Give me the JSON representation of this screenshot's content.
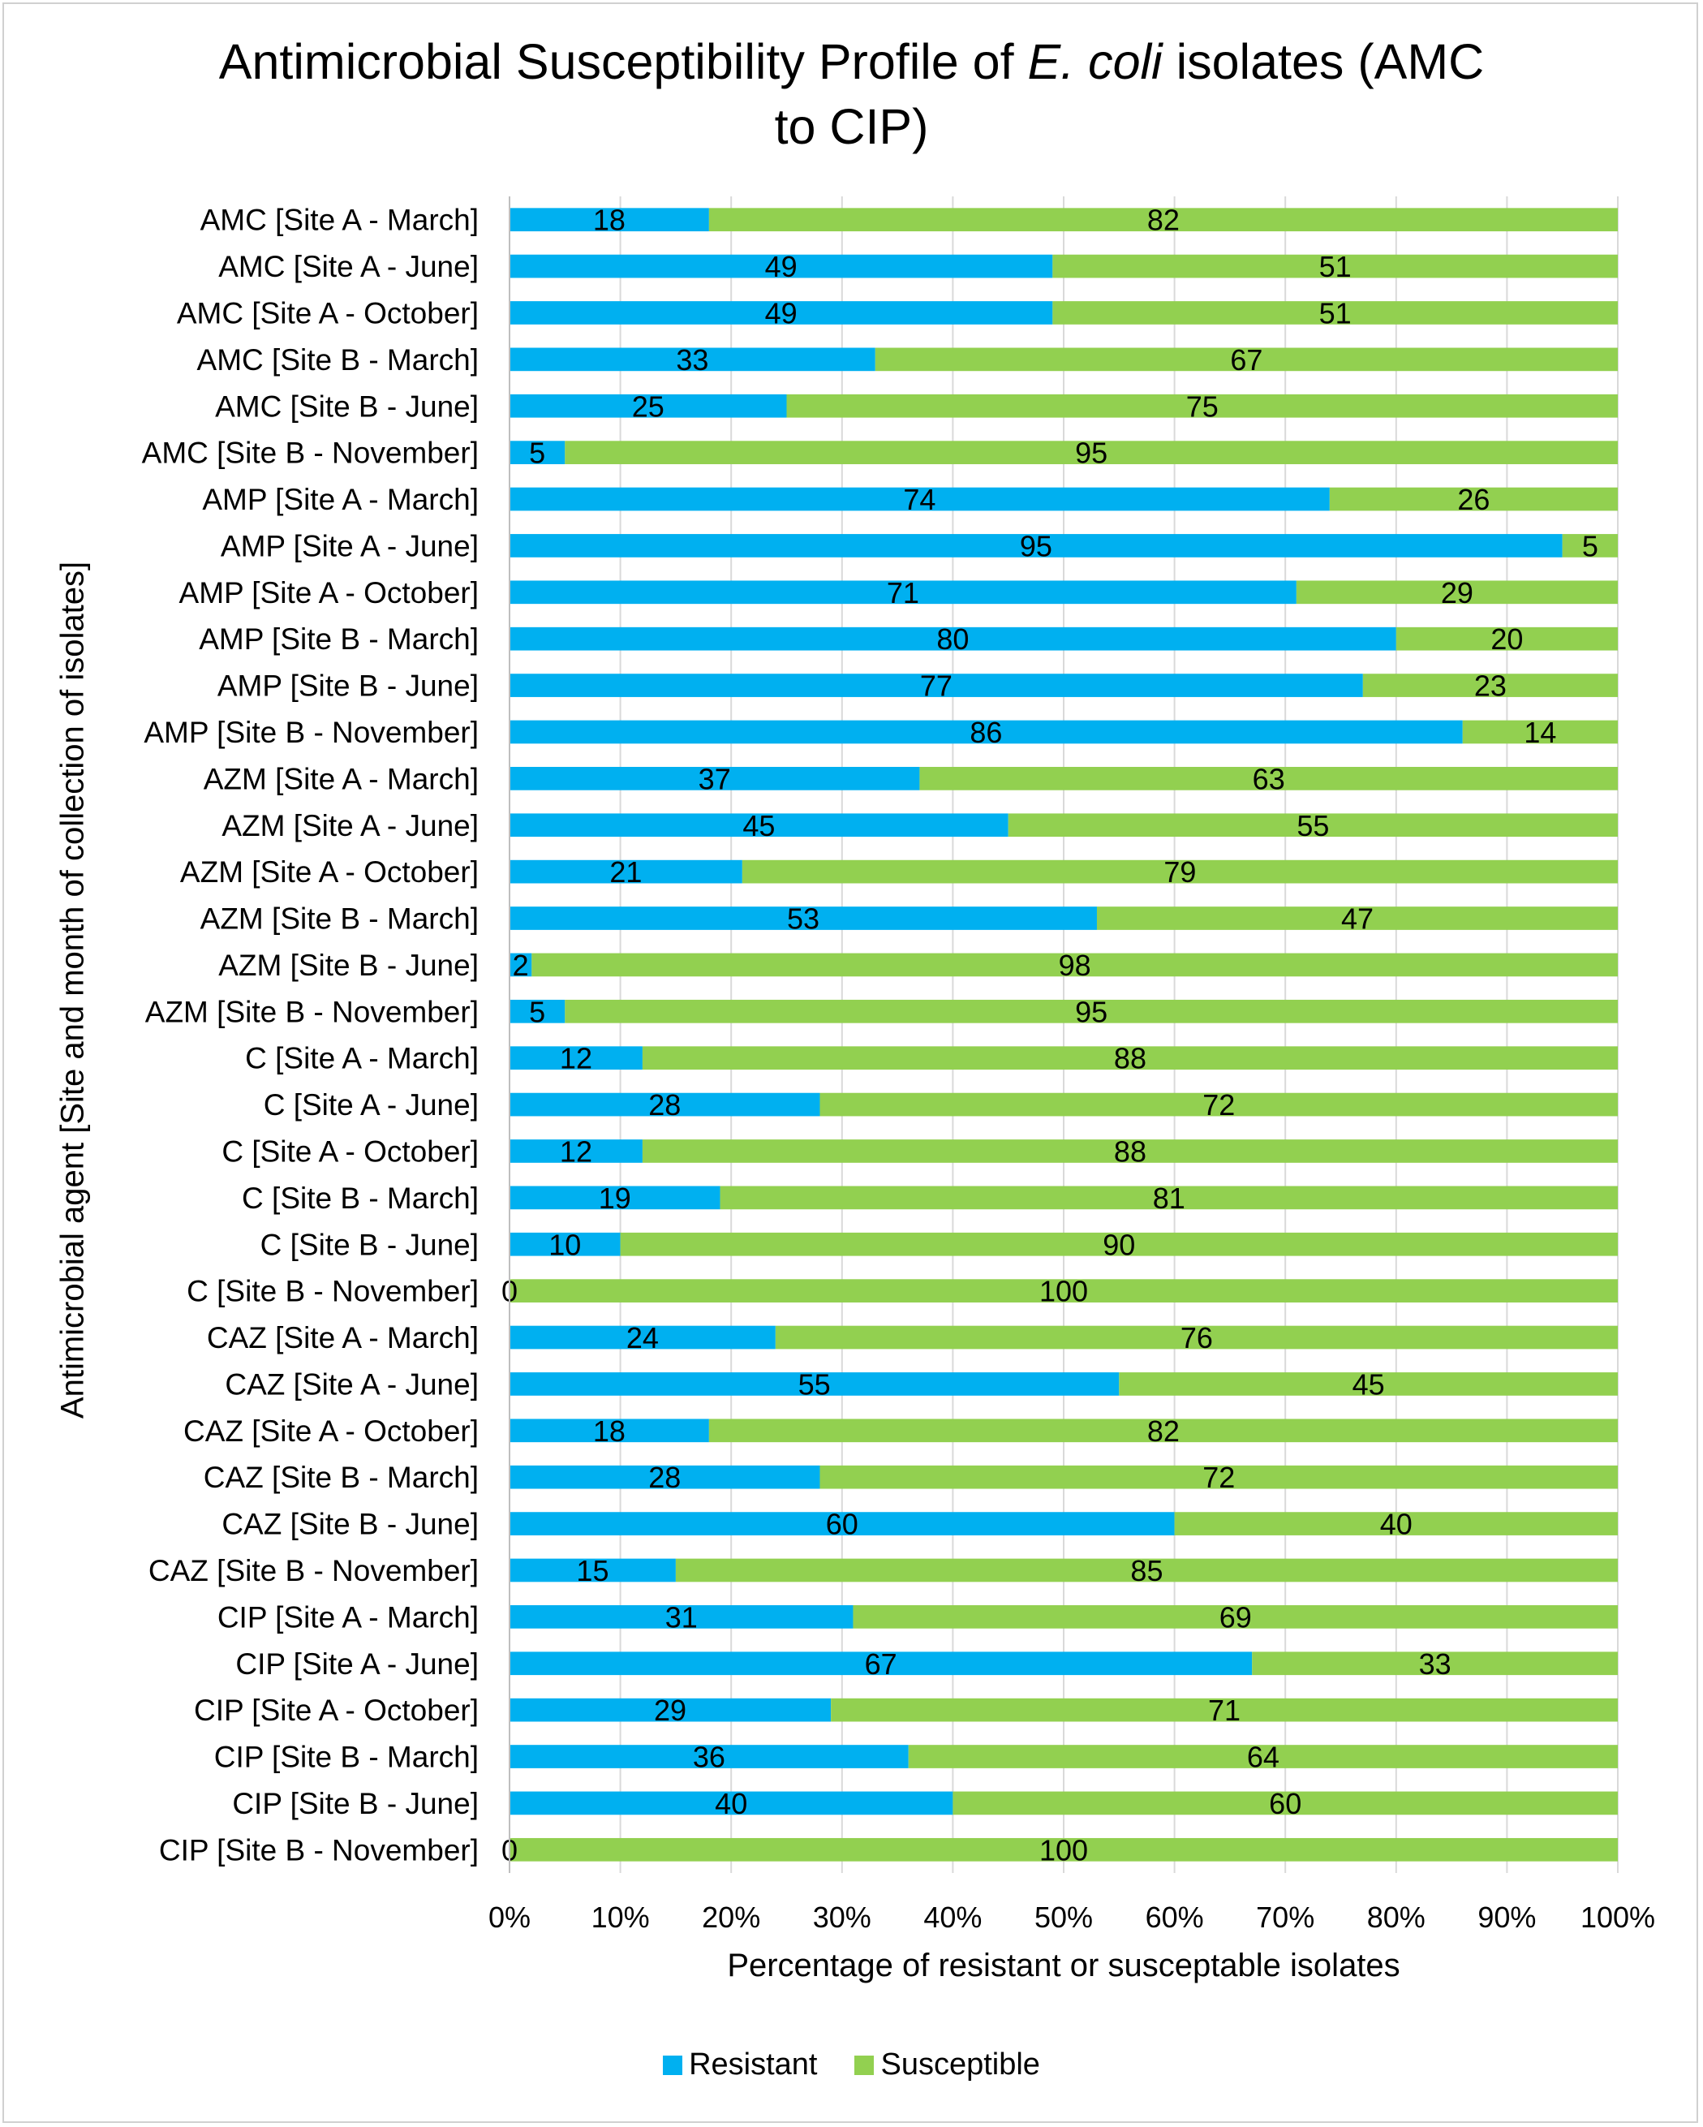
{
  "chart_data": {
    "type": "bar",
    "orientation": "horizontal",
    "stacked": "percent",
    "title_parts": [
      "Antimicrobial Susceptibility Profile of ",
      "E. coli",
      " isolates (AMC",
      "to CIP)"
    ],
    "xlabel": "Percentage of resistant or susceptable isolates",
    "ylabel": "Antimicrobial agent [Site and month of collection of isolates]",
    "xlim": [
      0,
      100
    ],
    "x_ticks": [
      "0%",
      "10%",
      "20%",
      "30%",
      "40%",
      "50%",
      "60%",
      "70%",
      "80%",
      "90%",
      "100%"
    ],
    "grid": "vertical",
    "legend_position": "bottom",
    "categories": [
      "AMC [Site A - March]",
      "AMC [Site A - June]",
      "AMC [Site A - October]",
      "AMC [Site B - March]",
      "AMC [Site B - June]",
      "AMC [Site B - November]",
      "AMP [Site A - March]",
      "AMP [Site A - June]",
      "AMP [Site A - October]",
      "AMP [Site B - March]",
      "AMP [Site B - June]",
      "AMP [Site B - November]",
      "AZM [Site A - March]",
      "AZM [Site A - June]",
      "AZM [Site A - October]",
      "AZM [Site B - March]",
      "AZM [Site B - June]",
      "AZM [Site B - November]",
      "C [Site A - March]",
      "C [Site A - June]",
      "C [Site A - October]",
      "C [Site B - March]",
      "C [Site B - June]",
      "C [Site B - November]",
      "CAZ [Site A - March]",
      "CAZ [Site A - June]",
      "CAZ [Site A - October]",
      "CAZ [Site B - March]",
      "CAZ [Site B - June]",
      "CAZ [Site B - November]",
      "CIP [Site A - March]",
      "CIP [Site A - June]",
      "CIP [Site A - October]",
      "CIP [Site B - March]",
      "CIP [Site B - June]",
      "CIP [Site B - November]"
    ],
    "series": [
      {
        "name": "Resistant",
        "color": "#00b0f0",
        "values": [
          18,
          49,
          49,
          33,
          25,
          5,
          74,
          95,
          71,
          80,
          77,
          86,
          37,
          45,
          21,
          53,
          2,
          5,
          12,
          28,
          12,
          19,
          10,
          0,
          24,
          55,
          18,
          28,
          60,
          15,
          31,
          67,
          29,
          36,
          40,
          0
        ]
      },
      {
        "name": "Susceptible",
        "color": "#92d050",
        "values": [
          82,
          51,
          51,
          67,
          75,
          95,
          26,
          5,
          29,
          20,
          23,
          14,
          63,
          55,
          79,
          47,
          98,
          95,
          88,
          72,
          88,
          81,
          90,
          100,
          76,
          45,
          82,
          72,
          40,
          85,
          69,
          33,
          71,
          64,
          60,
          100
        ]
      }
    ]
  }
}
